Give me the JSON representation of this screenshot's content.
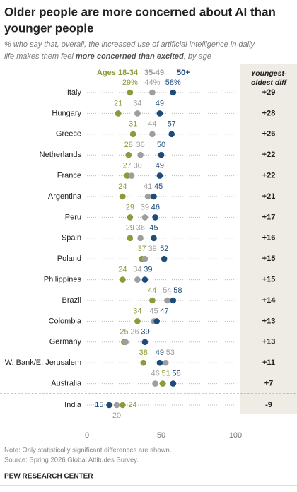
{
  "chart_data": {
    "type": "dot",
    "title_lines": [
      "Older people are more concerned about AI than",
      "younger people"
    ],
    "subtitle": "% who say that, overall, the increased use of artificial intelligence in daily",
    "subtitle_line2": "life makes them feel",
    "subtitle_emphasis": "more concerned than excited",
    "subtitle_end": ", by age",
    "categories": [
      "Italy",
      "Hungary",
      "Greece",
      "Netherlands",
      "France",
      "Argentina",
      "Peru",
      "Spain",
      "Poland",
      "Philippines",
      "Brazil",
      "Colombia",
      "Germany",
      "W. Bank/E. Jerusalem",
      "Australia",
      "India"
    ],
    "series": [
      {
        "name": "Ages 18-34",
        "color": "#8c9a3c",
        "values": [
          29,
          21,
          31,
          28,
          27,
          24,
          29,
          29,
          37,
          24,
          44,
          34,
          25,
          38,
          51,
          24
        ],
        "value_labels": [
          "29%",
          "21",
          "31",
          "28",
          "27",
          "24",
          "29",
          "29",
          "37",
          "24",
          "44",
          "34",
          "25",
          "38",
          "51",
          "24"
        ]
      },
      {
        "name": "35-49",
        "color": "#9e9e9e",
        "values": [
          44,
          34,
          44,
          36,
          30,
          41,
          39,
          36,
          39,
          34,
          54,
          45,
          26,
          53,
          46,
          20
        ],
        "value_labels": [
          "44%",
          "34",
          "44",
          "36",
          "30",
          "41",
          "39",
          "36",
          "39",
          "34",
          "54",
          "45",
          "26",
          "53",
          "46",
          "20"
        ]
      },
      {
        "name": "50+",
        "color": "#1f4b7a",
        "values": [
          58,
          49,
          57,
          50,
          49,
          45,
          46,
          45,
          52,
          39,
          58,
          47,
          39,
          49,
          58,
          15
        ],
        "value_labels": [
          "58%",
          "49",
          "57",
          "50",
          "49",
          "45",
          "46",
          "45",
          "52",
          "39",
          "58",
          "47",
          "39",
          "49",
          "58",
          "15"
        ]
      }
    ],
    "diff": {
      "name": "Youngest-oldest diff",
      "values": [
        29,
        28,
        26,
        22,
        22,
        21,
        17,
        16,
        15,
        15,
        14,
        13,
        13,
        11,
        7,
        -9
      ],
      "value_labels": [
        "+29",
        "+28",
        "+26",
        "+22",
        "+22",
        "+21",
        "+17",
        "+16",
        "+15",
        "+15",
        "+14",
        "+13",
        "+13",
        "+11",
        "+7",
        "-9"
      ]
    },
    "xlim": [
      0,
      100
    ],
    "xticks": [
      0,
      50,
      100
    ],
    "note": "Note: Only statistically significant differences are shown.",
    "source": "Source: Spring 2026 Global Attitudes Survey.",
    "footer": "PEW RESEARCH CENTER"
  }
}
